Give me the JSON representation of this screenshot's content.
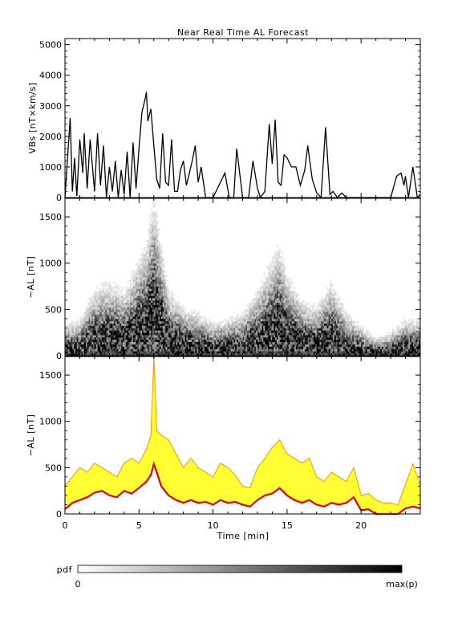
{
  "chart_data": [
    {
      "type": "line",
      "title": "Near Real Time AL Forecast",
      "ylabel": "VBs [nT×km/s]",
      "ylim": [
        0,
        5200
      ],
      "xlim": [
        0,
        24
      ],
      "yticks": [
        "0",
        "1000",
        "2000",
        "3000",
        "4000",
        "5000"
      ],
      "series": [
        {
          "x": [
            0,
            0.35,
            0.5,
            0.65,
            0.8,
            1.0,
            1.2,
            1.3,
            1.5,
            1.7,
            2.0,
            2.2,
            2.4,
            2.6,
            2.8,
            3.0,
            3.2,
            3.4,
            3.6,
            3.8,
            4.0,
            4.2,
            4.4,
            4.6,
            4.8,
            5.0,
            5.2,
            5.4,
            5.5,
            5.6,
            5.8,
            6.0,
            6.2,
            6.4,
            6.6,
            6.8,
            7.0,
            7.2,
            7.4,
            7.6,
            7.8,
            8.0,
            8.2,
            8.4,
            8.6,
            8.8,
            9.0,
            9.2,
            9.5,
            10.0,
            10.8,
            11.1,
            11.4,
            11.6,
            12.0,
            12.4,
            12.7,
            13.0,
            13.2,
            13.5,
            13.8,
            14.0,
            14.2,
            14.4,
            14.6,
            14.8,
            15.0,
            15.3,
            15.6,
            15.9,
            16.2,
            16.4,
            16.7,
            17.0,
            17.3,
            17.6,
            17.9,
            18.1,
            18.4,
            18.7,
            19.0,
            19.3,
            19.5,
            20.0,
            21.0,
            22.0,
            22.4,
            22.7,
            22.9,
            23.0,
            23.2,
            23.5,
            23.8,
            24.0
          ],
          "y": [
            0,
            2600,
            200,
            1300,
            50,
            1900,
            800,
            2100,
            300,
            1900,
            200,
            2100,
            400,
            1700,
            0,
            1000,
            200,
            1200,
            0,
            900,
            100,
            1500,
            0,
            1800,
            300,
            1600,
            2800,
            3200,
            3450,
            2500,
            2900,
            1700,
            600,
            300,
            2100,
            500,
            400,
            1900,
            200,
            200,
            900,
            1200,
            400,
            800,
            1200,
            1700,
            500,
            1000,
            0,
            0,
            800,
            0,
            0,
            1600,
            0,
            0,
            1200,
            300,
            0,
            200,
            2400,
            1100,
            2550,
            500,
            400,
            1400,
            1300,
            1000,
            1000,
            400,
            900,
            1700,
            600,
            150,
            0,
            2300,
            100,
            200,
            0,
            150,
            0,
            0,
            0,
            0,
            0,
            0,
            700,
            800,
            400,
            700,
            0,
            1000,
            0,
            100
          ]
        }
      ]
    },
    {
      "type": "heatmap",
      "ylabel": "−AL [nT]",
      "ylim": [
        0,
        1700
      ],
      "xlim": [
        0,
        24
      ],
      "yticks": [
        "0",
        "500",
        "1000",
        "1500"
      ],
      "colorbar": {
        "label": "pdf",
        "min_label": "0",
        "max_label": "max(p)"
      },
      "peak_cluster_center": [
        [
          0,
          40
        ],
        [
          1,
          60
        ],
        [
          2,
          150
        ],
        [
          3,
          180
        ],
        [
          4,
          150
        ],
        [
          5,
          250
        ],
        [
          5.5,
          300
        ],
        [
          6,
          450
        ],
        [
          6.5,
          300
        ],
        [
          7,
          150
        ],
        [
          8,
          100
        ],
        [
          9,
          80
        ],
        [
          10,
          50
        ],
        [
          11,
          60
        ],
        [
          12,
          80
        ],
        [
          13,
          150
        ],
        [
          14,
          250
        ],
        [
          14.5,
          300
        ],
        [
          15,
          200
        ],
        [
          16,
          120
        ],
        [
          17,
          100
        ],
        [
          18,
          180
        ],
        [
          19,
          80
        ],
        [
          20,
          40
        ],
        [
          21,
          0
        ],
        [
          22,
          20
        ],
        [
          23,
          60
        ],
        [
          24,
          60
        ]
      ]
    },
    {
      "type": "area",
      "xlabel": "Time [min]",
      "ylabel": "−AL [nT]",
      "ylim": [
        0,
        1700
      ],
      "xlim": [
        0,
        24
      ],
      "xticks": [
        "0",
        "5",
        "10",
        "15",
        "20"
      ],
      "yticks": [
        "0",
        "500",
        "1000",
        "1500"
      ],
      "colors": {
        "median": "#dd0000",
        "band": "#ffff33",
        "band_edge": "#f0a000"
      },
      "x": [
        0,
        0.5,
        1,
        1.5,
        2,
        2.5,
        3,
        3.5,
        4,
        4.5,
        5,
        5.5,
        5.8,
        6,
        6.2,
        6.5,
        7,
        7.5,
        8,
        8.5,
        9,
        9.5,
        10,
        10.5,
        11,
        11.5,
        12,
        12.5,
        13,
        13.5,
        14,
        14.5,
        15,
        15.5,
        16,
        16.5,
        17,
        17.5,
        18,
        18.5,
        19,
        19.5,
        20,
        20.5,
        21,
        21.5,
        22,
        22.5,
        23,
        23.5,
        24
      ],
      "median": [
        50,
        120,
        150,
        180,
        230,
        250,
        200,
        180,
        250,
        220,
        280,
        350,
        420,
        540,
        450,
        300,
        200,
        150,
        120,
        150,
        120,
        130,
        100,
        150,
        120,
        130,
        100,
        80,
        150,
        200,
        220,
        280,
        200,
        150,
        120,
        150,
        100,
        80,
        120,
        100,
        120,
        180,
        40,
        50,
        0,
        0,
        0,
        0,
        60,
        80,
        60
      ],
      "band_upper": [
        300,
        400,
        500,
        450,
        550,
        500,
        450,
        400,
        550,
        600,
        550,
        700,
        850,
        1700,
        900,
        850,
        800,
        650,
        500,
        600,
        500,
        450,
        400,
        550,
        500,
        420,
        300,
        280,
        500,
        600,
        720,
        800,
        650,
        600,
        550,
        600,
        400,
        350,
        450,
        400,
        350,
        500,
        200,
        220,
        150,
        120,
        120,
        100,
        320,
        540,
        300
      ]
    }
  ]
}
